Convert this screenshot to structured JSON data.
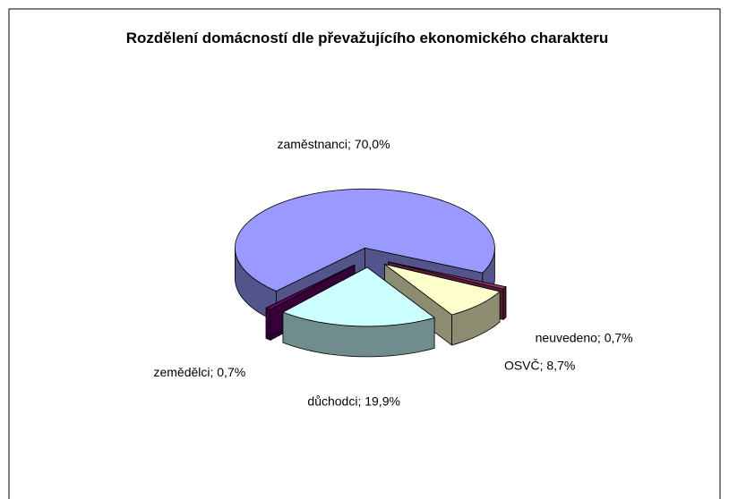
{
  "chart_data": {
    "type": "pie3d",
    "title": "Rozdělení domácností dle převažujícího ekonomického charakteru",
    "values": [
      70.0,
      0.7,
      8.7,
      19.9,
      0.7
    ],
    "value_labels": [
      "zaměstnanci; 70,0%",
      "neuvedeno; 0,7%",
      "OSVČ; 8,7%",
      "důchodci; 19,9%",
      "zemědělci; 0,7%"
    ],
    "colors": [
      "#9999ff",
      "#993366",
      "#ffffcc",
      "#ccffff",
      "#660066"
    ]
  }
}
